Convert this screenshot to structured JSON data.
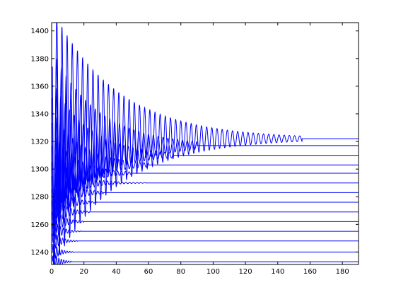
{
  "chart_data": {
    "type": "line",
    "title": "",
    "xlabel": "",
    "ylabel": "",
    "xlim": [
      0,
      190
    ],
    "ylim": [
      1231,
      1406
    ],
    "grid": false,
    "legend": "none",
    "line_color": "#0000ff",
    "xticks": [
      0,
      20,
      40,
      60,
      80,
      100,
      120,
      140,
      160,
      180
    ],
    "yticks": [
      1240,
      1260,
      1280,
      1300,
      1320,
      1340,
      1360,
      1380,
      1400
    ],
    "series": [
      {
        "steady_state": 1322,
        "oscillation_amplitude": 95,
        "decay_time": 40,
        "oscillation_period": 3.2,
        "oscillation_ends_at": 155
      },
      {
        "steady_state": 1317,
        "oscillation_amplitude": 70,
        "decay_time": 28,
        "oscillation_period": 3.0,
        "oscillation_ends_at": 90
      },
      {
        "steady_state": 1310,
        "oscillation_amplitude": 55,
        "decay_time": 22,
        "oscillation_period": 2.8,
        "oscillation_ends_at": 75
      },
      {
        "steady_state": 1303,
        "oscillation_amplitude": 40,
        "decay_time": 18,
        "oscillation_period": 2.6,
        "oscillation_ends_at": 60
      },
      {
        "steady_state": 1297,
        "oscillation_amplitude": 32,
        "decay_time": 14,
        "oscillation_period": 2.4,
        "oscillation_ends_at": 50
      },
      {
        "steady_state": 1290,
        "oscillation_amplitude": 25,
        "decay_time": 12,
        "oscillation_period": 2.3,
        "oscillation_ends_at": 58
      },
      {
        "steady_state": 1283,
        "oscillation_amplitude": 20,
        "decay_time": 10,
        "oscillation_period": 2.2,
        "oscillation_ends_at": 32
      },
      {
        "steady_state": 1276,
        "oscillation_amplitude": 17,
        "decay_time": 8,
        "oscillation_period": 2.1,
        "oscillation_ends_at": 28
      },
      {
        "steady_state": 1269,
        "oscillation_amplitude": 14,
        "decay_time": 7,
        "oscillation_period": 2.0,
        "oscillation_ends_at": 24
      },
      {
        "steady_state": 1262,
        "oscillation_amplitude": 12,
        "decay_time": 6,
        "oscillation_period": 1.9,
        "oscillation_ends_at": 20
      },
      {
        "steady_state": 1255,
        "oscillation_amplitude": 10,
        "decay_time": 5,
        "oscillation_period": 1.8,
        "oscillation_ends_at": 18
      },
      {
        "steady_state": 1248,
        "oscillation_amplitude": 9,
        "decay_time": 4.5,
        "oscillation_period": 1.7,
        "oscillation_ends_at": 16
      },
      {
        "steady_state": 1240,
        "oscillation_amplitude": 8,
        "decay_time": 4,
        "oscillation_period": 1.6,
        "oscillation_ends_at": 14
      },
      {
        "steady_state": 1233,
        "oscillation_amplitude": 8,
        "decay_time": 4,
        "oscillation_period": 1.5,
        "oscillation_ends_at": 12
      }
    ]
  }
}
